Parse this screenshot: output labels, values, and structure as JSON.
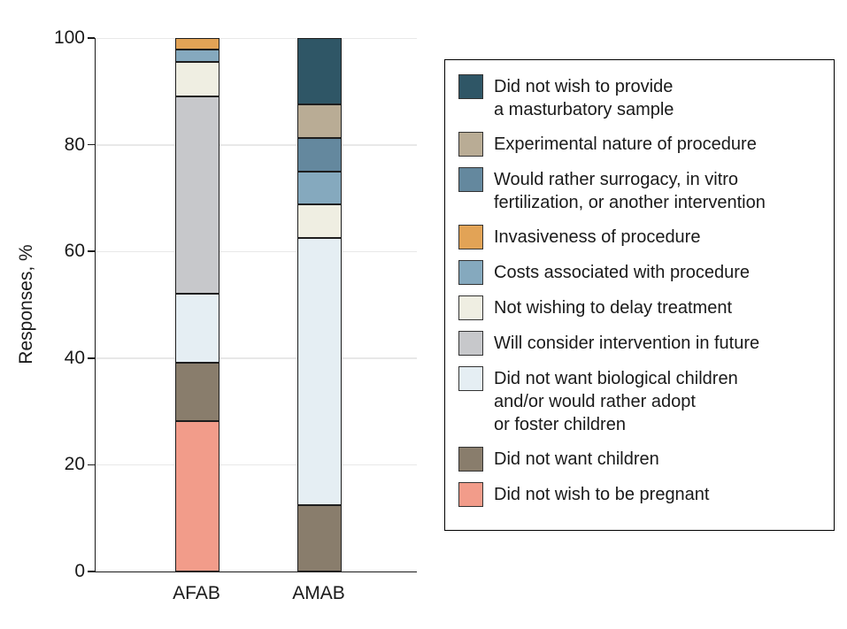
{
  "chart_data": {
    "type": "bar",
    "stacked": true,
    "percent_scale": true,
    "categories": [
      "AFAB",
      "AMAB"
    ],
    "title": "",
    "xlabel": "",
    "ylabel": "Responses, %",
    "ylim": [
      0,
      100
    ],
    "yticks": [
      0,
      20,
      40,
      60,
      80,
      100
    ],
    "grid": true,
    "legend_position": "right",
    "series": [
      {
        "label": "Did not wish to provide\na masturbatory sample",
        "color": "#2F5666",
        "values": [
          0,
          12.5
        ]
      },
      {
        "label": "Experimental nature of procedure",
        "color": "#B9AC95",
        "values": [
          0,
          6.25
        ]
      },
      {
        "label": "Would rather surrogacy, in vitro\nfertilization, or another intervention",
        "color": "#64889E",
        "values": [
          0,
          6.25
        ]
      },
      {
        "label": "Invasiveness of procedure",
        "color": "#E2A356",
        "values": [
          2.2,
          0
        ]
      },
      {
        "label": "Costs associated with procedure",
        "color": "#85A9BE",
        "values": [
          2.2,
          6.25
        ]
      },
      {
        "label": "Not wishing to delay treatment",
        "color": "#EFEEE2",
        "values": [
          6.5,
          6.25
        ]
      },
      {
        "label": "Will consider intervention in future",
        "color": "#C7C8CB",
        "values": [
          37,
          0
        ]
      },
      {
        "label": "Did not want biological children\nand/or would rather adopt\nor foster children",
        "color": "#E5EEF3",
        "values": [
          13,
          50
        ]
      },
      {
        "label": "Did not want children",
        "color": "#897D6C",
        "values": [
          10.9,
          12.5
        ]
      },
      {
        "label": "Did not wish to be pregnant",
        "color": "#F29C8A",
        "values": [
          28.3,
          0
        ]
      }
    ]
  },
  "colors": {
    "axis": "#1a1a1a",
    "gridline": "#e8e8e8",
    "segment_border": "#1e1e1e",
    "legend_border": "#000000",
    "background": "#ffffff"
  }
}
